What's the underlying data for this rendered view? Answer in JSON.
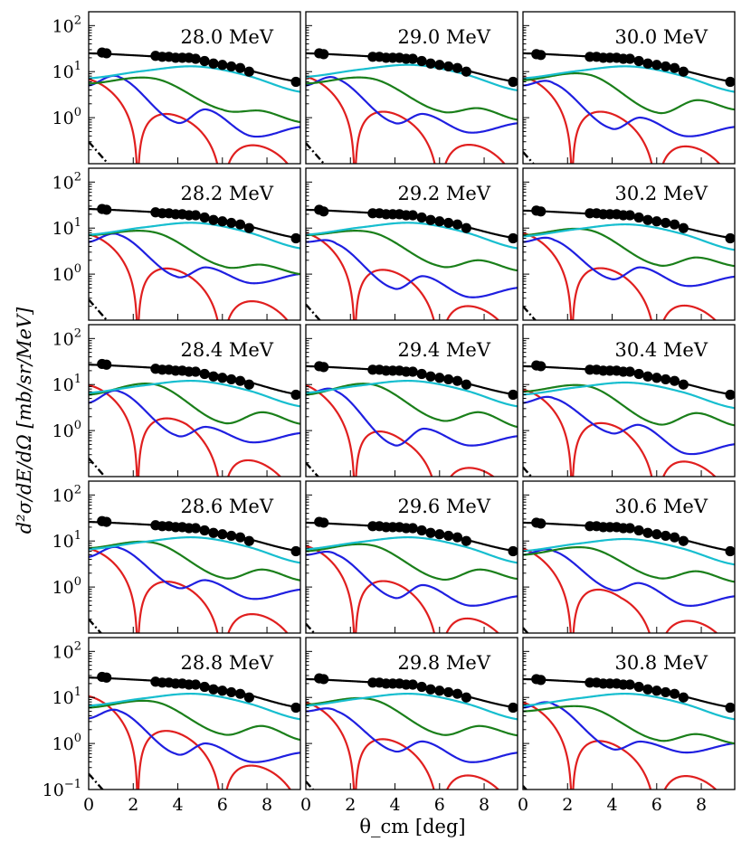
{
  "chart_data": {
    "type": "line",
    "layout": "5x3 panel grid",
    "ylabel": "d²σ/dE/dΩ [mb/sr/MeV]",
    "xlabel": "θ_cm [deg]",
    "xlim": [
      0,
      9.5
    ],
    "ylim": [
      0.1,
      200
    ],
    "yscale": "log",
    "xticks": [
      "0",
      "2",
      "4",
      "6",
      "8"
    ],
    "xtick_values": [
      0,
      2,
      4,
      6,
      8
    ],
    "yticks": [
      {
        "base": "10",
        "exp": "−1",
        "value": 0.1
      },
      {
        "base": "10",
        "exp": "0",
        "value": 1
      },
      {
        "base": "10",
        "exp": "1",
        "value": 10
      },
      {
        "base": "10",
        "exp": "2",
        "value": 100
      }
    ],
    "series_colors": {
      "total": "#000000",
      "cyan": "#17becf",
      "green": "#1a7f1a",
      "blue": "#1f1fe0",
      "red": "#e01f1f",
      "dashdot": "#000000"
    },
    "data_x": [
      0.6,
      0.8,
      3.0,
      3.3,
      3.6,
      3.9,
      4.2,
      4.5,
      4.8,
      5.2,
      5.6,
      6.0,
      6.4,
      6.8,
      7.2,
      9.3
    ],
    "panels": [
      {
        "label": "28.0 MeV",
        "row": 0,
        "col": 0,
        "total": [
          25,
          24,
          17,
          17,
          17,
          17,
          17,
          16,
          16,
          15,
          14,
          13,
          12,
          11,
          10,
          6
        ],
        "data_y": [
          26,
          25,
          22,
          21,
          21,
          20,
          20,
          20,
          19,
          17,
          15,
          14,
          13,
          12,
          10,
          6
        ],
        "cyan_peak": 13,
        "green": [
          5.5,
          7,
          1.5,
          1.4,
          0.8
        ],
        "blue": [
          5,
          7.5,
          0.8,
          1.5,
          0.5
        ],
        "red": [
          7,
          0.9,
          0.2
        ],
        "dashdot_start": 0.3
      },
      {
        "label": "29.0 MeV",
        "row": 0,
        "col": 1,
        "total": [
          25,
          24,
          17,
          17,
          17,
          17,
          17,
          16,
          16,
          15,
          14,
          13,
          12,
          11,
          10,
          6
        ],
        "data_y": [
          25,
          24,
          21,
          21,
          20,
          20,
          20,
          19,
          19,
          17,
          15,
          14,
          13,
          12,
          10,
          6
        ],
        "cyan_peak": 14,
        "green": [
          5.5,
          7,
          1.4,
          1.6,
          0.9
        ],
        "blue": [
          5,
          7,
          0.8,
          1.2,
          0.6
        ],
        "red": [
          8,
          1.0,
          0.2
        ],
        "dashdot_start": 0.28
      },
      {
        "label": "30.0 MeV",
        "row": 0,
        "col": 2,
        "total": [
          25,
          24,
          17,
          17,
          17,
          17,
          17,
          16,
          16,
          15,
          14,
          13,
          12,
          11,
          10,
          6
        ],
        "data_y": [
          24,
          23,
          21,
          21,
          20,
          20,
          20,
          19,
          19,
          17,
          15,
          14,
          13,
          12,
          10,
          6
        ],
        "cyan_peak": 13,
        "green": [
          6.5,
          8.5,
          1.3,
          2.4,
          1.5
        ],
        "blue": [
          5,
          5.5,
          0.6,
          1.0,
          0.5
        ],
        "red": [
          8,
          1.0,
          0.18
        ],
        "dashdot_start": 0.18
      },
      {
        "label": "28.2 MeV",
        "row": 1,
        "col": 0,
        "total": [
          26,
          25,
          17,
          17,
          17,
          17,
          17,
          16,
          16,
          15,
          14,
          13,
          12,
          11,
          10,
          6
        ],
        "data_y": [
          26,
          25,
          22,
          21,
          21,
          20,
          20,
          19,
          19,
          17,
          15,
          14,
          13,
          12,
          10,
          6
        ],
        "cyan_peak": 13,
        "green": [
          7,
          8,
          1.5,
          1.6,
          1.0
        ],
        "blue": [
          5,
          7,
          0.9,
          1.4,
          0.8
        ],
        "red": [
          7.5,
          1.0,
          0.2
        ],
        "dashdot_start": 0.28
      },
      {
        "label": "29.2 MeV",
        "row": 1,
        "col": 1,
        "total": [
          25,
          24,
          17,
          17,
          17,
          17,
          17,
          16,
          16,
          15,
          14,
          13,
          12,
          11,
          10,
          6
        ],
        "data_y": [
          25,
          23,
          21,
          21,
          20,
          20,
          20,
          19,
          19,
          17,
          15,
          14,
          13,
          12,
          10,
          6
        ],
        "cyan_peak": 13,
        "green": [
          7,
          8,
          1.5,
          2.0,
          1.2
        ],
        "blue": [
          5,
          4.5,
          0.5,
          0.9,
          0.4
        ],
        "red": [
          8,
          0.9,
          0.15
        ],
        "dashdot_start": 0.22
      },
      {
        "label": "30.2 MeV",
        "row": 1,
        "col": 2,
        "total": [
          24,
          23,
          17,
          17,
          17,
          17,
          17,
          16,
          16,
          15,
          14,
          13,
          12,
          11,
          10,
          6
        ],
        "data_y": [
          24,
          23,
          21,
          21,
          20,
          20,
          20,
          19,
          19,
          17,
          15,
          14,
          13,
          12,
          10,
          6
        ],
        "cyan_peak": 12,
        "green": [
          7,
          9,
          1.6,
          2.3,
          1.5
        ],
        "blue": [
          5,
          5.5,
          0.8,
          1.4,
          0.7
        ],
        "red": [
          8,
          1.0,
          0.15
        ],
        "dashdot_start": 0.2
      },
      {
        "label": "28.4 MeV",
        "row": 2,
        "col": 0,
        "total": [
          27,
          26,
          17,
          17,
          17,
          17,
          17,
          16,
          16,
          15,
          14,
          13,
          12,
          11,
          10,
          6
        ],
        "data_y": [
          28,
          27,
          22,
          21,
          21,
          20,
          20,
          19,
          19,
          17,
          15,
          14,
          13,
          12,
          10,
          6
        ],
        "cyan_peak": 12,
        "green": [
          6,
          10,
          1.5,
          2.5,
          1.4
        ],
        "blue": [
          4,
          7,
          0.8,
          1.2,
          0.7
        ],
        "red": [
          10,
          1.4,
          0.15
        ],
        "dashdot_start": 0.25
      },
      {
        "label": "29.4 MeV",
        "row": 2,
        "col": 1,
        "total": [
          25,
          24,
          17,
          17,
          17,
          17,
          17,
          16,
          16,
          15,
          14,
          13,
          12,
          11,
          10,
          6
        ],
        "data_y": [
          25,
          24,
          21,
          21,
          20,
          20,
          20,
          19,
          19,
          17,
          15,
          14,
          13,
          12,
          10,
          6
        ],
        "cyan_peak": 12,
        "green": [
          6,
          10,
          1.7,
          2.5,
          1.2
        ],
        "blue": [
          6,
          7,
          0.5,
          1.1,
          0.6
        ],
        "red": [
          10,
          0.6,
          0.12
        ],
        "dashdot_start": 0.2
      },
      {
        "label": "30.4 MeV",
        "row": 2,
        "col": 2,
        "total": [
          25,
          24,
          17,
          17,
          17,
          17,
          17,
          16,
          16,
          15,
          14,
          13,
          12,
          11,
          10,
          6
        ],
        "data_y": [
          26,
          25,
          21,
          21,
          20,
          20,
          20,
          19,
          19,
          17,
          15,
          14,
          13,
          12,
          10,
          6
        ],
        "cyan_peak": 11,
        "green": [
          7,
          9,
          1.4,
          2.4,
          1.3
        ],
        "blue": [
          4,
          5,
          0.9,
          1.3,
          0.4
        ],
        "red": [
          8,
          1.1,
          0.15
        ],
        "dashdot_start": 0.16
      },
      {
        "label": "28.6 MeV",
        "row": 3,
        "col": 0,
        "total": [
          26,
          25,
          17,
          17,
          17,
          17,
          17,
          16,
          16,
          15,
          14,
          13,
          12,
          11,
          10,
          6
        ],
        "data_y": [
          27,
          26,
          22,
          21,
          21,
          20,
          20,
          19,
          19,
          17,
          15,
          14,
          13,
          12,
          10,
          6
        ],
        "cyan_peak": 12,
        "green": [
          7,
          9,
          1.6,
          2.4,
          1.4
        ],
        "blue": [
          4.5,
          7,
          1.0,
          1.4,
          0.7
        ],
        "red": [
          7,
          1.0,
          0.2
        ],
        "dashdot_start": 0.2
      },
      {
        "label": "29.6 MeV",
        "row": 3,
        "col": 1,
        "total": [
          25,
          24,
          17,
          17,
          17,
          17,
          17,
          16,
          16,
          15,
          14,
          13,
          12,
          11,
          10,
          6
        ],
        "data_y": [
          26,
          25,
          21,
          21,
          20,
          20,
          20,
          19,
          19,
          17,
          15,
          14,
          13,
          12,
          10,
          6
        ],
        "cyan_peak": 12,
        "green": [
          6,
          8,
          1.5,
          2.4,
          1.5
        ],
        "blue": [
          5,
          5,
          0.6,
          1.1,
          0.5
        ],
        "red": [
          8,
          1.0,
          0.15
        ],
        "dashdot_start": 0.16
      },
      {
        "label": "30.6 MeV",
        "row": 3,
        "col": 2,
        "total": [
          25,
          24,
          17,
          17,
          17,
          17,
          17,
          16,
          16,
          15,
          14,
          13,
          12,
          11,
          10,
          6
        ],
        "data_y": [
          25,
          24,
          21,
          21,
          20,
          20,
          20,
          19,
          19,
          17,
          15,
          14,
          13,
          12,
          10,
          6
        ],
        "cyan_peak": 11,
        "green": [
          5,
          7,
          1.6,
          2.2,
          1.3
        ],
        "blue": [
          5,
          6,
          0.9,
          1.2,
          0.5
        ],
        "red": [
          7,
          0.6,
          0.15
        ],
        "dashdot_start": 0.13
      },
      {
        "label": "28.8 MeV",
        "row": 4,
        "col": 0,
        "total": [
          27,
          26,
          17,
          17,
          17,
          17,
          17,
          16,
          16,
          15,
          14,
          13,
          12,
          11,
          10,
          6
        ],
        "data_y": [
          28,
          27,
          22,
          21,
          21,
          20,
          20,
          19,
          19,
          17,
          15,
          14,
          13,
          12,
          10,
          6
        ],
        "cyan_peak": 12,
        "green": [
          6,
          8,
          1.6,
          2.4,
          1.2
        ],
        "blue": [
          3.5,
          5,
          0.6,
          1.0,
          0.5
        ],
        "red": [
          11,
          1.4,
          0.25
        ],
        "dashdot_start": 0.22
      },
      {
        "label": "29.8 MeV",
        "row": 4,
        "col": 1,
        "total": [
          25,
          24,
          17,
          17,
          17,
          17,
          17,
          16,
          16,
          15,
          14,
          13,
          12,
          11,
          10,
          6
        ],
        "data_y": [
          26,
          25,
          21,
          21,
          20,
          20,
          20,
          19,
          19,
          17,
          15,
          14,
          13,
          12,
          10,
          6
        ],
        "cyan_peak": 12,
        "green": [
          7,
          9,
          1.6,
          2.4,
          1.5
        ],
        "blue": [
          5,
          5,
          0.7,
          1.1,
          0.5
        ],
        "red": [
          8,
          0.9,
          0.15
        ],
        "dashdot_start": 0.15
      },
      {
        "label": "30.8 MeV",
        "row": 4,
        "col": 2,
        "total": [
          25,
          24,
          17,
          17,
          17,
          17,
          17,
          16,
          16,
          15,
          14,
          13,
          12,
          11,
          10,
          6
        ],
        "data_y": [
          25,
          24,
          21,
          21,
          20,
          20,
          20,
          19,
          19,
          17,
          15,
          14,
          13,
          12,
          10,
          6
        ],
        "cyan_peak": 12,
        "green": [
          5,
          6,
          1.2,
          1.6,
          1.0
        ],
        "blue": [
          6,
          7,
          0.8,
          1.1,
          0.8
        ],
        "red": [
          8,
          0.8,
          0.15
        ],
        "dashdot_start": 0.12
      }
    ]
  }
}
